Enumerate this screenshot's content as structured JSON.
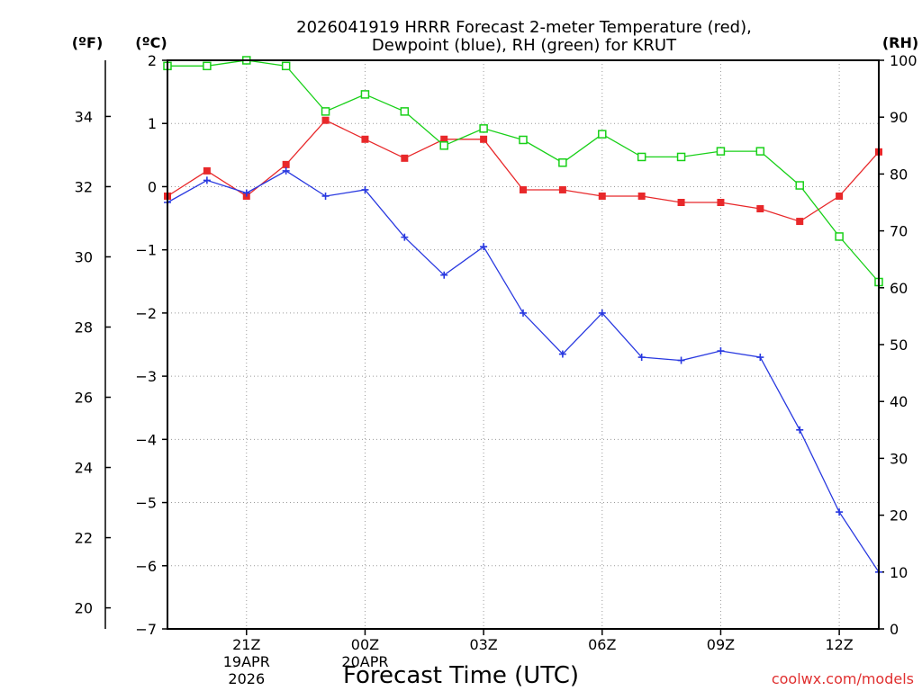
{
  "chart_data": {
    "type": "line",
    "title_line1": "2026041919 HRRR Forecast 2-meter Temperature (red),",
    "title_line2": "Dewpoint (blue), RH (green) for KRUT",
    "xlabel": "Forecast Time (UTC)",
    "credit": "coolwx.com/models",
    "units": {
      "fahrenheit": "(ºF)",
      "celsius": "(ºC)",
      "rh": "(RH)"
    },
    "x_hours": [
      0,
      1,
      2,
      3,
      4,
      5,
      6,
      7,
      8,
      9,
      10,
      11,
      12,
      13,
      14,
      15,
      16,
      17,
      18
    ],
    "x_ticks": [
      {
        "hour": 2,
        "label": "21Z",
        "sub1": "19APR",
        "sub2": "2026"
      },
      {
        "hour": 5,
        "label": "00Z",
        "sub1": "20APR",
        "sub2": ""
      },
      {
        "hour": 8,
        "label": "03Z",
        "sub1": "",
        "sub2": ""
      },
      {
        "hour": 11,
        "label": "06Z",
        "sub1": "",
        "sub2": ""
      },
      {
        "hour": 14,
        "label": "09Z",
        "sub1": "",
        "sub2": ""
      },
      {
        "hour": 17,
        "label": "12Z",
        "sub1": "",
        "sub2": ""
      }
    ],
    "celsius_ticks": [
      "2",
      "1",
      "0",
      "−1",
      "−2",
      "−3",
      "−4",
      "−5",
      "−6",
      "−7"
    ],
    "fahrenheit_ticks": [
      "34",
      "32",
      "30",
      "28",
      "26",
      "24",
      "22",
      "20"
    ],
    "rh_ticks": [
      "100",
      "90",
      "80",
      "70",
      "60",
      "50",
      "40",
      "30",
      "20",
      "10",
      "0"
    ],
    "ylim_celsius": [
      -7,
      2
    ],
    "ylim_rh": [
      0,
      100
    ],
    "series": [
      {
        "name": "Temperature",
        "unit": "C",
        "color": "#e8282a",
        "marker": "filled-square",
        "values": [
          -0.15,
          0.25,
          -0.15,
          0.35,
          1.05,
          0.75,
          0.45,
          0.75,
          0.75,
          -0.05,
          -0.05,
          -0.15,
          -0.15,
          -0.25,
          -0.25,
          -0.35,
          -0.55,
          -0.15,
          0.55
        ]
      },
      {
        "name": "Dewpoint",
        "unit": "C",
        "color": "#2838e0",
        "marker": "plus",
        "values": [
          -0.25,
          0.1,
          -0.1,
          0.25,
          -0.15,
          -0.05,
          -0.8,
          -1.4,
          -0.95,
          -2.0,
          -2.65,
          -2.0,
          -2.7,
          -2.75,
          -2.6,
          -2.7,
          -3.85,
          -5.15,
          -6.1
        ]
      },
      {
        "name": "Relative Humidity",
        "unit": "RH",
        "color": "#18d018",
        "marker": "open-square",
        "values": [
          99,
          99,
          100,
          99,
          91,
          94,
          91,
          85,
          88,
          86,
          82,
          87,
          83,
          83,
          84,
          84,
          78,
          69,
          61
        ]
      }
    ]
  }
}
